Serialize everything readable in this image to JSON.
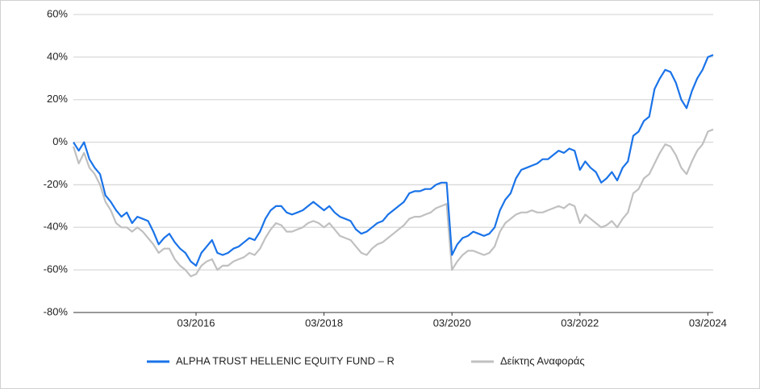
{
  "chart_data": {
    "type": "line",
    "x": [
      "04/2014",
      "05/2014",
      "06/2014",
      "07/2014",
      "08/2014",
      "09/2014",
      "10/2014",
      "11/2014",
      "12/2014",
      "01/2015",
      "02/2015",
      "03/2015",
      "04/2015",
      "05/2015",
      "06/2015",
      "07/2015",
      "08/2015",
      "09/2015",
      "10/2015",
      "11/2015",
      "12/2015",
      "01/2016",
      "02/2016",
      "03/2016",
      "04/2016",
      "05/2016",
      "06/2016",
      "07/2016",
      "08/2016",
      "09/2016",
      "10/2016",
      "11/2016",
      "12/2016",
      "01/2017",
      "02/2017",
      "03/2017",
      "04/2017",
      "05/2017",
      "06/2017",
      "07/2017",
      "08/2017",
      "09/2017",
      "10/2017",
      "11/2017",
      "12/2017",
      "01/2018",
      "02/2018",
      "03/2018",
      "04/2018",
      "05/2018",
      "06/2018",
      "07/2018",
      "08/2018",
      "09/2018",
      "10/2018",
      "11/2018",
      "12/2018",
      "01/2019",
      "02/2019",
      "03/2019",
      "04/2019",
      "05/2019",
      "06/2019",
      "07/2019",
      "08/2019",
      "09/2019",
      "10/2019",
      "11/2019",
      "12/2019",
      "01/2020",
      "02/2020",
      "03/2020",
      "04/2020",
      "05/2020",
      "06/2020",
      "07/2020",
      "08/2020",
      "09/2020",
      "10/2020",
      "11/2020",
      "12/2020",
      "01/2021",
      "02/2021",
      "03/2021",
      "04/2021",
      "05/2021",
      "06/2021",
      "07/2021",
      "08/2021",
      "09/2021",
      "10/2021",
      "11/2021",
      "12/2021",
      "01/2022",
      "02/2022",
      "03/2022",
      "04/2022",
      "05/2022",
      "06/2022",
      "07/2022",
      "08/2022",
      "09/2022",
      "10/2022",
      "11/2022",
      "12/2022",
      "01/2023",
      "02/2023",
      "03/2023",
      "04/2023",
      "05/2023",
      "06/2023",
      "07/2023",
      "08/2023",
      "09/2023",
      "10/2023",
      "11/2023",
      "12/2023",
      "01/2024",
      "02/2024",
      "03/2024",
      "04/2024"
    ],
    "series": [
      {
        "name": "ALPHA TRUST HELLENIC EQUITY FUND – R",
        "color": "#1a73e8",
        "values": [
          0,
          -4,
          0,
          -8,
          -12,
          -15,
          -25,
          -28,
          -32,
          -35,
          -33,
          -38,
          -35,
          -36,
          -37,
          -42,
          -48,
          -45,
          -43,
          -47,
          -50,
          -52,
          -56,
          -58,
          -52,
          -49,
          -46,
          -52,
          -53,
          -52,
          -50,
          -49,
          -47,
          -45,
          -46,
          -42,
          -36,
          -32,
          -30,
          -30,
          -33,
          -34,
          -33,
          -32,
          -30,
          -28,
          -30,
          -32,
          -30,
          -33,
          -35,
          -36,
          -37,
          -41,
          -43,
          -42,
          -40,
          -38,
          -37,
          -34,
          -32,
          -30,
          -28,
          -24,
          -23,
          -23,
          -22,
          -22,
          -20,
          -19,
          -19,
          -53,
          -48,
          -45,
          -44,
          -42,
          -43,
          -44,
          -43,
          -40,
          -32,
          -27,
          -24,
          -17,
          -13,
          -12,
          -11,
          -10,
          -8,
          -8,
          -6,
          -4,
          -5,
          -3,
          -4,
          -13,
          -9,
          -12,
          -14,
          -19,
          -17,
          -14,
          -18,
          -12,
          -9,
          3,
          5,
          10,
          12,
          25,
          30,
          34,
          33,
          28,
          20,
          16,
          24,
          30,
          34,
          40,
          41
        ]
      },
      {
        "name": "Δείκτης Αναφοράς",
        "color": "#c0c0c0",
        "values": [
          -2,
          -10,
          -5,
          -12,
          -15,
          -20,
          -28,
          -32,
          -38,
          -40,
          -40,
          -42,
          -40,
          -42,
          -45,
          -48,
          -52,
          -50,
          -50,
          -55,
          -58,
          -60,
          -63,
          -62,
          -58,
          -56,
          -55,
          -60,
          -58,
          -58,
          -56,
          -55,
          -54,
          -52,
          -53,
          -50,
          -45,
          -41,
          -38,
          -39,
          -42,
          -42,
          -41,
          -40,
          -38,
          -37,
          -38,
          -40,
          -38,
          -41,
          -44,
          -45,
          -46,
          -49,
          -52,
          -53,
          -50,
          -48,
          -47,
          -45,
          -43,
          -41,
          -39,
          -36,
          -35,
          -35,
          -34,
          -33,
          -31,
          -30,
          -29,
          -60,
          -56,
          -53,
          -51,
          -51,
          -52,
          -53,
          -52,
          -49,
          -42,
          -38,
          -36,
          -34,
          -33,
          -33,
          -32,
          -33,
          -33,
          -32,
          -31,
          -30,
          -31,
          -29,
          -30,
          -38,
          -34,
          -36,
          -38,
          -40,
          -39,
          -37,
          -40,
          -36,
          -33,
          -24,
          -22,
          -17,
          -15,
          -10,
          -5,
          -1,
          -2,
          -6,
          -12,
          -15,
          -9,
          -4,
          -1,
          5,
          6
        ]
      }
    ],
    "xticks": [
      "03/2016",
      "03/2018",
      "03/2020",
      "03/2022",
      "03/2024"
    ],
    "ylim": [
      -80,
      60
    ],
    "yticks": [
      {
        "value": -80,
        "label": "-80%"
      },
      {
        "value": -60,
        "label": "-60%"
      },
      {
        "value": -40,
        "label": "-40%"
      },
      {
        "value": -20,
        "label": "-20%"
      },
      {
        "value": 0,
        "label": "0%"
      },
      {
        "value": 20,
        "label": "20%"
      },
      {
        "value": 40,
        "label": "40%"
      },
      {
        "value": 60,
        "label": "60%"
      }
    ],
    "grid": true,
    "legend": "bottom"
  }
}
